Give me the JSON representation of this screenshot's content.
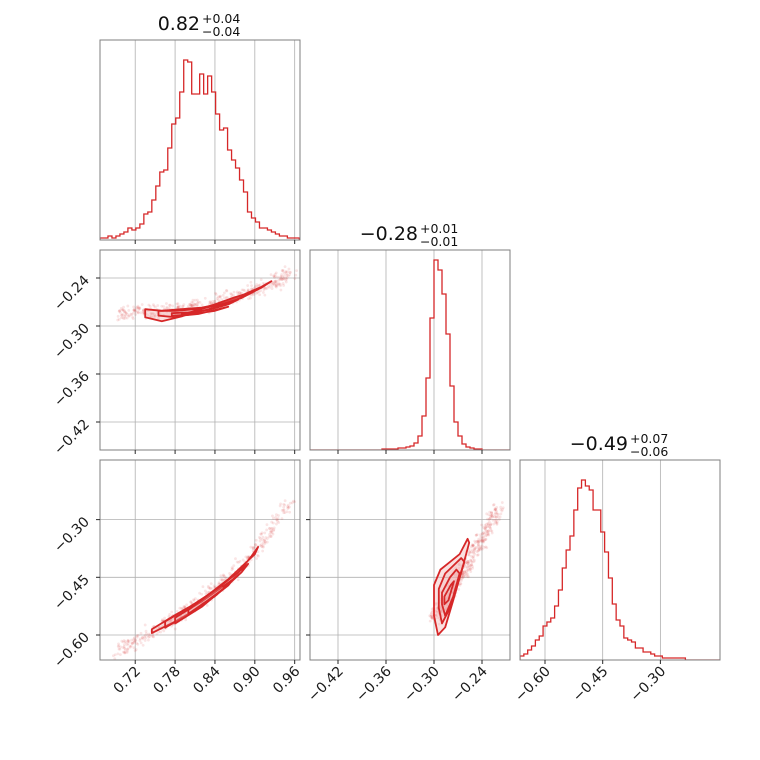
{
  "figure": "corner-plot",
  "colors": {
    "accent": "#d62728",
    "fill": "#f0a8a8",
    "grid": "#b0b0b0",
    "frame": "#7f7f7f"
  },
  "chart_data": [
    {
      "type": "histogram",
      "panel": "p0-0",
      "title": {
        "value": "0.82",
        "plus": "+0.04",
        "minus": "−0.04"
      },
      "xlim": [
        0.667,
        0.968
      ],
      "ylim": [
        0,
        1.0
      ],
      "x_ticks": [
        0.72,
        0.78,
        0.84,
        0.9,
        0.96
      ],
      "grid": true,
      "bins_x": [
        0.667,
        0.673,
        0.679,
        0.685,
        0.691,
        0.697,
        0.703,
        0.709,
        0.715,
        0.721,
        0.727,
        0.733,
        0.739,
        0.745,
        0.751,
        0.757,
        0.763,
        0.769,
        0.775,
        0.781,
        0.787,
        0.793,
        0.799,
        0.805,
        0.811,
        0.817,
        0.823,
        0.829,
        0.835,
        0.841,
        0.847,
        0.853,
        0.859,
        0.865,
        0.871,
        0.877,
        0.883,
        0.889,
        0.895,
        0.901,
        0.907,
        0.913,
        0.919,
        0.925,
        0.931,
        0.937,
        0.943,
        0.949,
        0.955,
        0.961
      ],
      "counts": [
        0.01,
        0.01,
        0.02,
        0.01,
        0.02,
        0.03,
        0.04,
        0.06,
        0.05,
        0.06,
        0.08,
        0.13,
        0.14,
        0.2,
        0.27,
        0.34,
        0.35,
        0.46,
        0.58,
        0.61,
        0.74,
        0.9,
        0.89,
        0.73,
        0.73,
        0.83,
        0.73,
        0.82,
        0.74,
        0.63,
        0.55,
        0.56,
        0.45,
        0.4,
        0.36,
        0.3,
        0.24,
        0.14,
        0.11,
        0.09,
        0.06,
        0.06,
        0.05,
        0.04,
        0.03,
        0.02,
        0.02,
        0.01,
        0.01,
        0.01
      ]
    },
    {
      "type": "histogram",
      "panel": "p1-1",
      "title": {
        "value": "−0.28",
        "plus": "+0.01",
        "minus": "−0.01"
      },
      "xlim": [
        -0.455,
        -0.205
      ],
      "ylim": [
        0,
        1.0
      ],
      "x_ticks": [
        -0.42,
        -0.36,
        -0.3,
        -0.24
      ],
      "grid": true,
      "bins_x": [
        -0.455,
        -0.45,
        -0.445,
        -0.44,
        -0.435,
        -0.43,
        -0.425,
        -0.42,
        -0.415,
        -0.41,
        -0.405,
        -0.4,
        -0.395,
        -0.39,
        -0.385,
        -0.38,
        -0.375,
        -0.37,
        -0.365,
        -0.36,
        -0.355,
        -0.35,
        -0.345,
        -0.34,
        -0.335,
        -0.33,
        -0.325,
        -0.32,
        -0.315,
        -0.31,
        -0.305,
        -0.3,
        -0.295,
        -0.29,
        -0.285,
        -0.28,
        -0.275,
        -0.27,
        -0.265,
        -0.26,
        -0.255,
        -0.25,
        -0.245,
        -0.24,
        -0.235,
        -0.23,
        -0.225,
        -0.22,
        -0.215,
        -0.21
      ],
      "counts": [
        0,
        0,
        0,
        0,
        0,
        0,
        0,
        0,
        0,
        0,
        0,
        0,
        0,
        0,
        0,
        0,
        0,
        0,
        0.005,
        0.005,
        0.005,
        0.005,
        0.01,
        0.01,
        0.015,
        0.02,
        0.035,
        0.07,
        0.17,
        0.36,
        0.66,
        0.95,
        0.9,
        0.78,
        0.58,
        0.32,
        0.14,
        0.07,
        0.03,
        0.015,
        0.01,
        0.005,
        0.005,
        0,
        0,
        0,
        0,
        0,
        0,
        0
      ]
    },
    {
      "type": "histogram",
      "panel": "p2-2",
      "title": {
        "value": "−0.49",
        "plus": "+0.07",
        "minus": "−0.06"
      },
      "xlim": [
        -0.665,
        -0.145
      ],
      "ylim": [
        0,
        1.0
      ],
      "x_ticks": [
        -0.6,
        -0.45,
        -0.3
      ],
      "grid": true,
      "bins_x": [
        -0.665,
        -0.655,
        -0.645,
        -0.635,
        -0.625,
        -0.615,
        -0.605,
        -0.595,
        -0.585,
        -0.575,
        -0.565,
        -0.555,
        -0.545,
        -0.535,
        -0.525,
        -0.515,
        -0.505,
        -0.495,
        -0.485,
        -0.475,
        -0.465,
        -0.455,
        -0.445,
        -0.435,
        -0.425,
        -0.415,
        -0.405,
        -0.395,
        -0.385,
        -0.375,
        -0.365,
        -0.355,
        -0.345,
        -0.335,
        -0.325,
        -0.315,
        -0.305,
        -0.295,
        -0.285,
        -0.275,
        -0.265,
        -0.255,
        -0.245,
        -0.235,
        -0.225,
        -0.215,
        -0.205,
        -0.195,
        -0.185,
        -0.175,
        -0.165,
        -0.155
      ],
      "counts": [
        0.02,
        0.03,
        0.05,
        0.07,
        0.1,
        0.12,
        0.17,
        0.19,
        0.21,
        0.27,
        0.35,
        0.46,
        0.55,
        0.62,
        0.75,
        0.86,
        0.9,
        0.87,
        0.85,
        0.75,
        0.75,
        0.64,
        0.54,
        0.41,
        0.28,
        0.2,
        0.17,
        0.11,
        0.1,
        0.09,
        0.06,
        0.06,
        0.04,
        0.04,
        0.03,
        0.02,
        0.02,
        0.01,
        0.01,
        0.01,
        0.01,
        0.01,
        0.01,
        0,
        0,
        0,
        0,
        0,
        0,
        0,
        0,
        0
      ]
    },
    {
      "type": "scatter-contour",
      "panel": "p1-0",
      "xlim": [
        0.667,
        0.968
      ],
      "ylim": [
        -0.455,
        -0.205
      ],
      "y_ticks": [
        -0.24,
        -0.3,
        -0.36,
        -0.42
      ],
      "grid": true,
      "ridge": {
        "x": [
          0.695,
          0.72,
          0.75,
          0.78,
          0.81,
          0.84,
          0.87,
          0.9,
          0.93,
          0.955
        ],
        "y": [
          -0.283,
          -0.283,
          -0.282,
          -0.279,
          -0.276,
          -0.271,
          -0.264,
          -0.256,
          -0.245,
          -0.232
        ]
      },
      "contours": [
        {
          "x": [
            0.735,
            0.76,
            0.79,
            0.82,
            0.85,
            0.88,
            0.91,
            0.925,
            0.91,
            0.88,
            0.85,
            0.82,
            0.79,
            0.76,
            0.735
          ],
          "y": [
            -0.279,
            -0.281,
            -0.279,
            -0.277,
            -0.272,
            -0.265,
            -0.252,
            -0.244,
            -0.251,
            -0.262,
            -0.271,
            -0.279,
            -0.288,
            -0.294,
            -0.289
          ]
        },
        {
          "x": [
            0.755,
            0.78,
            0.81,
            0.84,
            0.87,
            0.895,
            0.87,
            0.84,
            0.81,
            0.78,
            0.755
          ],
          "y": [
            -0.281,
            -0.281,
            -0.279,
            -0.275,
            -0.268,
            -0.258,
            -0.264,
            -0.273,
            -0.281,
            -0.289,
            -0.287
          ]
        },
        {
          "x": [
            0.775,
            0.8,
            0.83,
            0.86,
            0.875,
            0.86,
            0.83,
            0.8,
            0.775
          ],
          "y": [
            -0.284,
            -0.283,
            -0.28,
            -0.273,
            -0.267,
            -0.272,
            -0.279,
            -0.286,
            -0.287
          ]
        },
        {
          "x": [
            0.79,
            0.815,
            0.84,
            0.86,
            0.84,
            0.815,
            0.79
          ],
          "y": [
            -0.285,
            -0.284,
            -0.281,
            -0.276,
            -0.28,
            -0.285,
            -0.287
          ]
        }
      ]
    },
    {
      "type": "scatter-contour",
      "panel": "p2-0",
      "xlim": [
        0.667,
        0.968
      ],
      "ylim": [
        -0.665,
        -0.145
      ],
      "y_ticks": [
        -0.3,
        -0.45,
        -0.6
      ],
      "grid": true,
      "ridge": {
        "x": [
          0.695,
          0.72,
          0.75,
          0.78,
          0.81,
          0.84,
          0.87,
          0.9,
          0.93,
          0.955
        ],
        "y": [
          -0.642,
          -0.616,
          -0.59,
          -0.555,
          -0.519,
          -0.481,
          -0.44,
          -0.385,
          -0.315,
          -0.245
        ]
      },
      "contours": [
        {
          "x": [
            0.745,
            0.78,
            0.82,
            0.86,
            0.895,
            0.905,
            0.9,
            0.86,
            0.82,
            0.78,
            0.745
          ],
          "y": [
            -0.595,
            -0.565,
            -0.525,
            -0.471,
            -0.395,
            -0.371,
            -0.39,
            -0.455,
            -0.509,
            -0.548,
            -0.585
          ]
        },
        {
          "x": [
            0.765,
            0.8,
            0.84,
            0.88,
            0.89,
            0.875,
            0.84,
            0.8,
            0.765
          ],
          "y": [
            -0.581,
            -0.546,
            -0.499,
            -0.437,
            -0.415,
            -0.437,
            -0.484,
            -0.529,
            -0.565
          ]
        },
        {
          "x": [
            0.78,
            0.82,
            0.86,
            0.875,
            0.865,
            0.82,
            0.78
          ],
          "y": [
            -0.57,
            -0.527,
            -0.469,
            -0.445,
            -0.458,
            -0.513,
            -0.555
          ]
        },
        {
          "x": [
            0.8,
            0.83,
            0.855,
            0.85,
            0.83,
            0.8
          ],
          "y": [
            -0.545,
            -0.509,
            -0.477,
            -0.471,
            -0.495,
            -0.535
          ]
        }
      ]
    },
    {
      "type": "scatter-contour",
      "panel": "p2-1",
      "xlim": [
        -0.455,
        -0.205
      ],
      "ylim": [
        -0.665,
        -0.145
      ],
      "y_ticks": [
        -0.3,
        -0.45,
        -0.6
      ],
      "grid": true,
      "ridge": {
        "x": [
          -0.3,
          -0.29,
          -0.28,
          -0.27,
          -0.26,
          -0.25,
          -0.24,
          -0.23,
          -0.22
        ],
        "y": [
          -0.56,
          -0.525,
          -0.49,
          -0.455,
          -0.42,
          -0.385,
          -0.35,
          -0.31,
          -0.27
        ]
      },
      "contours": [
        {
          "x": [
            -0.3,
            -0.292,
            -0.28,
            -0.268,
            -0.258,
            -0.256,
            -0.265,
            -0.276,
            -0.286,
            -0.295,
            -0.3
          ],
          "y": [
            -0.47,
            -0.43,
            -0.41,
            -0.39,
            -0.35,
            -0.36,
            -0.43,
            -0.51,
            -0.58,
            -0.6,
            -0.55
          ]
        },
        {
          "x": [
            -0.294,
            -0.286,
            -0.276,
            -0.266,
            -0.262,
            -0.27,
            -0.28,
            -0.29,
            -0.294
          ],
          "y": [
            -0.48,
            -0.44,
            -0.42,
            -0.4,
            -0.41,
            -0.46,
            -0.53,
            -0.57,
            -0.53
          ]
        },
        {
          "x": [
            -0.29,
            -0.28,
            -0.272,
            -0.268,
            -0.276,
            -0.286,
            -0.29
          ],
          "y": [
            -0.49,
            -0.45,
            -0.43,
            -0.44,
            -0.5,
            -0.55,
            -0.52
          ]
        },
        {
          "x": [
            -0.287,
            -0.279,
            -0.275,
            -0.282,
            -0.287
          ],
          "y": [
            -0.5,
            -0.47,
            -0.46,
            -0.51,
            -0.52
          ]
        }
      ]
    }
  ]
}
